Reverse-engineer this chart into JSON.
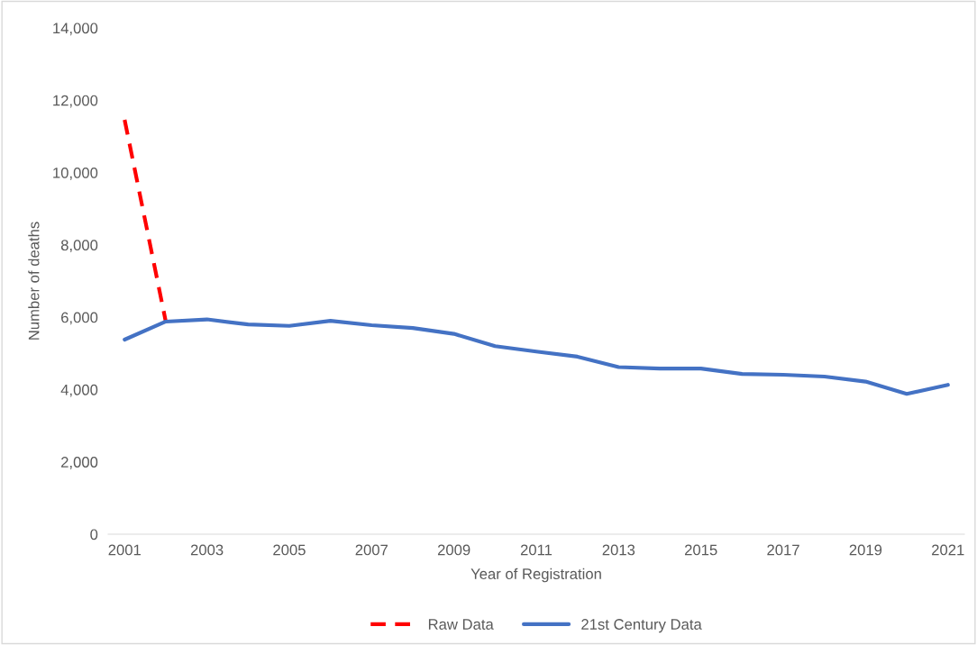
{
  "chart_data": {
    "type": "line",
    "xlabel": "Year of Registration",
    "ylabel": "Number of deaths",
    "x": [
      2001,
      2002,
      2003,
      2004,
      2005,
      2006,
      2007,
      2008,
      2009,
      2010,
      2011,
      2012,
      2013,
      2014,
      2015,
      2016,
      2017,
      2018,
      2019,
      2020,
      2021
    ],
    "series": [
      {
        "name": "Raw Data",
        "color": "#ff0000",
        "line_style": "dashed",
        "values": [
          11460,
          5880,
          null,
          null,
          null,
          null,
          null,
          null,
          null,
          null,
          null,
          null,
          null,
          null,
          null,
          null,
          null,
          null,
          null,
          null,
          null
        ]
      },
      {
        "name": "21st Century Data",
        "color": "#4472c4",
        "line_style": "solid",
        "values": [
          5380,
          5880,
          5940,
          5800,
          5760,
          5900,
          5780,
          5700,
          5540,
          5200,
          5050,
          4910,
          4620,
          4580,
          4580,
          4430,
          4410,
          4360,
          4220,
          3880,
          4130
        ]
      }
    ],
    "xlim": [
      2000.6,
      2021.4
    ],
    "xticks": [
      2001,
      2003,
      2005,
      2007,
      2009,
      2011,
      2013,
      2015,
      2017,
      2019,
      2021
    ],
    "ylim": [
      0,
      14000
    ],
    "yticks": [
      {
        "value": 0,
        "label": "0"
      },
      {
        "value": 2000,
        "label": "2,000"
      },
      {
        "value": 4000,
        "label": "4,000"
      },
      {
        "value": 6000,
        "label": "6,000"
      },
      {
        "value": 8000,
        "label": "8,000"
      },
      {
        "value": 10000,
        "label": "10,000"
      },
      {
        "value": 12000,
        "label": "12,000"
      },
      {
        "value": 14000,
        "label": "14,000"
      }
    ],
    "grid": false,
    "legend": "bottom",
    "marker": "none"
  }
}
